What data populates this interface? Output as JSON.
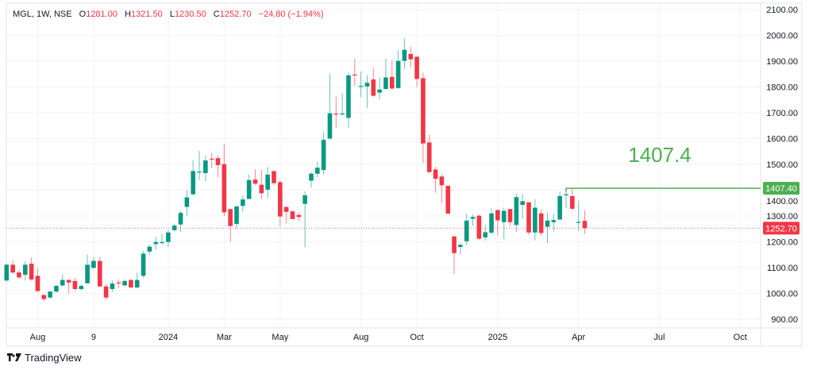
{
  "header": {
    "symbol": "MGL, 1W, NSE",
    "o_label": "O",
    "open": "1281.00",
    "h_label": "H",
    "high": "1321.50",
    "l_label": "L",
    "low": "1230.50",
    "c_label": "C",
    "close": "1252.70",
    "change": "−24.80 (−1.94%)"
  },
  "footer": {
    "brand": "TradingView"
  },
  "annotation": {
    "text": "1407.4"
  },
  "colors": {
    "up": "#089981",
    "down": "#f23645",
    "level": "#4caf50"
  },
  "chart_data": {
    "type": "candlestick",
    "title": "MGL, 1W, NSE",
    "ylim": [
      880,
      2110
    ],
    "y_ticks": [
      "2100.00",
      "2000.00",
      "1900.00",
      "1800.00",
      "1700.00",
      "1600.00",
      "1500.00",
      "1400.00",
      "1300.00",
      "1200.00",
      "1100.00",
      "1000.00",
      "900.00"
    ],
    "y_tick_values": [
      2100,
      2000,
      1900,
      1800,
      1700,
      1600,
      1500,
      1400,
      1300,
      1200,
      1100,
      1000,
      900
    ],
    "x_ticks": [
      {
        "label": "Aug",
        "bar": 5
      },
      {
        "label": "9",
        "bar": 14
      },
      {
        "label": "2024",
        "bar": 26
      },
      {
        "label": "Mar",
        "bar": 35
      },
      {
        "label": "May",
        "bar": 44
      },
      {
        "label": "Aug",
        "bar": 57
      },
      {
        "label": "Oct",
        "bar": 66
      },
      {
        "label": "2025",
        "bar": 79
      },
      {
        "label": "Apr",
        "bar": 92
      },
      {
        "label": "Jul",
        "bar": 105
      },
      {
        "label": "Oct",
        "bar": 118
      }
    ],
    "level_line": {
      "value": 1407.4,
      "label": "1407.40",
      "from_bar": 90
    },
    "last_price": {
      "value": 1252.7,
      "label": "1252.70"
    },
    "ohlc": [
      [
        1050,
        1115,
        1045,
        1111
      ],
      [
        1111,
        1130,
        1075,
        1081
      ],
      [
        1081,
        1090,
        1058,
        1062
      ],
      [
        1072,
        1125,
        1050,
        1111
      ],
      [
        1115,
        1140,
        1050,
        1054
      ],
      [
        1068,
        1100,
        1005,
        1009
      ],
      [
        994,
        994,
        970,
        978
      ],
      [
        984,
        1012,
        980,
        1007
      ],
      [
        1007,
        1033,
        1003,
        1029
      ],
      [
        1031,
        1075,
        1025,
        1052
      ],
      [
        1052,
        1055,
        1000,
        1042
      ],
      [
        1048,
        1060,
        1010,
        1017
      ],
      [
        1017,
        1035,
        1010,
        1029
      ],
      [
        1039,
        1150,
        1037,
        1111
      ],
      [
        1099,
        1140,
        1095,
        1126
      ],
      [
        1126,
        1140,
        1023,
        1027
      ],
      [
        1027,
        1035,
        978,
        984
      ],
      [
        1017,
        1050,
        1005,
        1038
      ],
      [
        1042,
        1055,
        1020,
        1040
      ],
      [
        1031,
        1055,
        1028,
        1048
      ],
      [
        1052,
        1055,
        1020,
        1023
      ],
      [
        1023,
        1080,
        1020,
        1052
      ],
      [
        1068,
        1165,
        1060,
        1154
      ],
      [
        1162,
        1190,
        1150,
        1181
      ],
      [
        1191,
        1220,
        1170,
        1199
      ],
      [
        1195,
        1230,
        1190,
        1199
      ],
      [
        1199,
        1245,
        1180,
        1236
      ],
      [
        1245,
        1270,
        1240,
        1263
      ],
      [
        1267,
        1320,
        1238,
        1312
      ],
      [
        1335,
        1400,
        1300,
        1372
      ],
      [
        1384,
        1515,
        1380,
        1474
      ],
      [
        1469,
        1552,
        1440,
        1472
      ],
      [
        1466,
        1535,
        1435,
        1515
      ],
      [
        1522,
        1545,
        1485,
        1520
      ],
      [
        1524,
        1535,
        1450,
        1497
      ],
      [
        1501,
        1580,
        1300,
        1314
      ],
      [
        1327,
        1327,
        1200,
        1261
      ],
      [
        1269,
        1340,
        1250,
        1337
      ],
      [
        1339,
        1380,
        1315,
        1364
      ],
      [
        1366,
        1460,
        1366,
        1439
      ],
      [
        1441,
        1480,
        1420,
        1425
      ],
      [
        1421,
        1480,
        1365,
        1388
      ],
      [
        1402,
        1490,
        1370,
        1460
      ],
      [
        1474,
        1474,
        1420,
        1427
      ],
      [
        1431,
        1440,
        1258,
        1298
      ],
      [
        1335,
        1335,
        1270,
        1316
      ],
      [
        1318,
        1320,
        1288,
        1288
      ],
      [
        1304,
        1312,
        1280,
        1296
      ],
      [
        1347,
        1395,
        1179,
        1380
      ],
      [
        1437,
        1470,
        1410,
        1464
      ],
      [
        1464,
        1510,
        1450,
        1487
      ],
      [
        1478,
        1625,
        1460,
        1595
      ],
      [
        1600,
        1850,
        1595,
        1698
      ],
      [
        1697,
        1762,
        1640,
        1695
      ],
      [
        1695,
        1775,
        1690,
        1697
      ],
      [
        1680,
        1855,
        1640,
        1845
      ],
      [
        1848,
        1910,
        1805,
        1846
      ],
      [
        1802,
        1860,
        1760,
        1804
      ],
      [
        1802,
        1845,
        1718,
        1816
      ],
      [
        1829,
        1875,
        1762,
        1766
      ],
      [
        1778,
        1835,
        1752,
        1790
      ],
      [
        1792,
        1910,
        1790,
        1837
      ],
      [
        1839,
        1905,
        1790,
        1794
      ],
      [
        1796,
        1942,
        1792,
        1901
      ],
      [
        1901,
        1988,
        1870,
        1944
      ],
      [
        1928,
        1955,
        1875,
        1907
      ],
      [
        1917,
        1920,
        1800,
        1831
      ],
      [
        1834,
        1855,
        1505,
        1581
      ],
      [
        1585,
        1615,
        1465,
        1470
      ],
      [
        1480,
        1490,
        1390,
        1444
      ],
      [
        1453,
        1462,
        1350,
        1419
      ],
      [
        1417,
        1417,
        1309,
        1309
      ],
      [
        1221,
        1221,
        1075,
        1156
      ],
      [
        1180,
        1195,
        1150,
        1188
      ],
      [
        1202,
        1308,
        1185,
        1282
      ],
      [
        1289,
        1306,
        1262,
        1296
      ],
      [
        1301,
        1305,
        1207,
        1212
      ],
      [
        1217,
        1265,
        1205,
        1237
      ],
      [
        1235,
        1330,
        1230,
        1310
      ],
      [
        1323,
        1323,
        1225,
        1283
      ],
      [
        1276,
        1333,
        1210,
        1320
      ],
      [
        1327,
        1327,
        1260,
        1276
      ],
      [
        1265,
        1385,
        1238,
        1373
      ],
      [
        1343,
        1385,
        1288,
        1357
      ],
      [
        1353,
        1353,
        1227,
        1236
      ],
      [
        1236,
        1365,
        1205,
        1332
      ],
      [
        1310,
        1327,
        1225,
        1234
      ],
      [
        1258,
        1313,
        1195,
        1282
      ],
      [
        1276,
        1308,
        1240,
        1284
      ],
      [
        1286,
        1394,
        1286,
        1377
      ],
      [
        1380,
        1407.4,
        1332,
        1384
      ],
      [
        1377,
        1407,
        1322,
        1328
      ],
      [
        1273,
        1358,
        1241,
        1277
      ],
      [
        1281,
        1321.5,
        1230.5,
        1252.7
      ]
    ]
  }
}
